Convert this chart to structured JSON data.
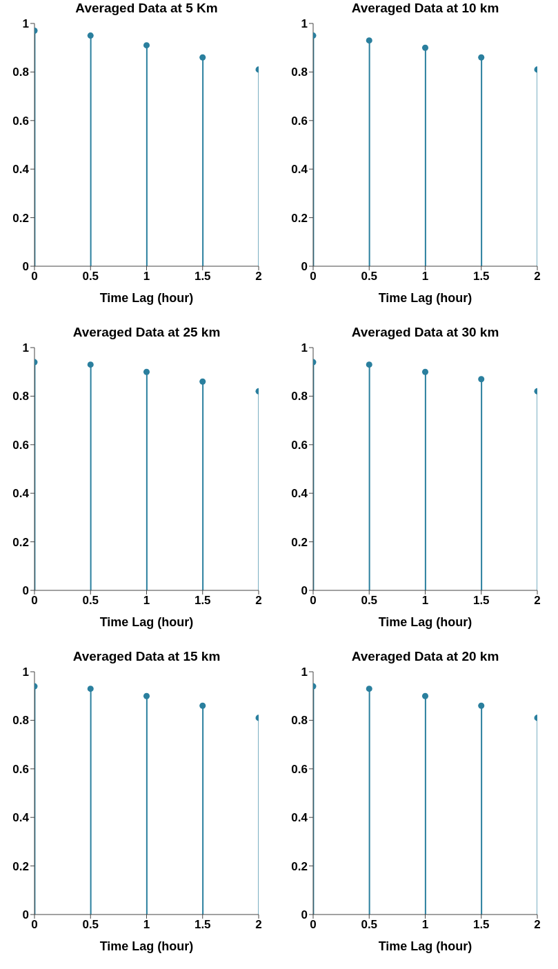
{
  "chart_data": [
    {
      "type": "lollipop",
      "title": "Averaged Data at 5 Km",
      "xlabel": "Time Lag (hour)",
      "x": [
        0,
        0.5,
        1,
        1.5,
        2
      ],
      "values": [
        0.97,
        0.95,
        0.91,
        0.86,
        0.81
      ],
      "color": "#2a7f9e",
      "marker": "circle",
      "xlim": [
        0,
        2
      ],
      "ylim": [
        0,
        1
      ],
      "xticks": [
        0,
        0.5,
        1,
        1.5,
        2
      ],
      "yticks": [
        0,
        0.2,
        0.4,
        0.6,
        0.8,
        1
      ]
    },
    {
      "type": "lollipop",
      "title": "Averaged Data at 10 km",
      "xlabel": "Time Lag (hour)",
      "x": [
        0,
        0.5,
        1,
        1.5,
        2
      ],
      "values": [
        0.95,
        0.93,
        0.9,
        0.86,
        0.81
      ],
      "color": "#2a7f9e",
      "marker": "circle",
      "xlim": [
        0,
        2
      ],
      "ylim": [
        0,
        1
      ],
      "xticks": [
        0,
        0.5,
        1,
        1.5,
        2
      ],
      "yticks": [
        0,
        0.2,
        0.4,
        0.6,
        0.8,
        1
      ]
    },
    {
      "type": "lollipop",
      "title": "Averaged Data at 25 km",
      "xlabel": "Time Lag (hour)",
      "x": [
        0,
        0.5,
        1,
        1.5,
        2
      ],
      "values": [
        0.94,
        0.93,
        0.9,
        0.86,
        0.82
      ],
      "color": "#2a7f9e",
      "marker": "circle",
      "xlim": [
        0,
        2
      ],
      "ylim": [
        0,
        1
      ],
      "xticks": [
        0,
        0.5,
        1,
        1.5,
        2
      ],
      "yticks": [
        0,
        0.2,
        0.4,
        0.6,
        0.8,
        1
      ]
    },
    {
      "type": "lollipop",
      "title": "Averaged Data at 30 km",
      "xlabel": "Time Lag (hour)",
      "x": [
        0,
        0.5,
        1,
        1.5,
        2
      ],
      "values": [
        0.94,
        0.93,
        0.9,
        0.87,
        0.82
      ],
      "color": "#2a7f9e",
      "marker": "circle",
      "xlim": [
        0,
        2
      ],
      "ylim": [
        0,
        1
      ],
      "xticks": [
        0,
        0.5,
        1,
        1.5,
        2
      ],
      "yticks": [
        0,
        0.2,
        0.4,
        0.6,
        0.8,
        1
      ]
    },
    {
      "type": "lollipop",
      "title": "Averaged Data at 15 km",
      "xlabel": "Time Lag (hour)",
      "x": [
        0,
        0.5,
        1,
        1.5,
        2
      ],
      "values": [
        0.94,
        0.93,
        0.9,
        0.86,
        0.81
      ],
      "color": "#2a7f9e",
      "marker": "circle",
      "xlim": [
        0,
        2
      ],
      "ylim": [
        0,
        1
      ],
      "xticks": [
        0,
        0.5,
        1,
        1.5,
        2
      ],
      "yticks": [
        0,
        0.2,
        0.4,
        0.6,
        0.8,
        1
      ]
    },
    {
      "type": "lollipop",
      "title": "Averaged Data at 20 km",
      "xlabel": "Time Lag (hour)",
      "x": [
        0,
        0.5,
        1,
        1.5,
        2
      ],
      "values": [
        0.94,
        0.93,
        0.9,
        0.86,
        0.81
      ],
      "color": "#2a7f9e",
      "marker": "circle",
      "xlim": [
        0,
        2
      ],
      "ylim": [
        0,
        1
      ],
      "xticks": [
        0,
        0.5,
        1,
        1.5,
        2
      ],
      "yticks": [
        0,
        0.2,
        0.4,
        0.6,
        0.8,
        1
      ]
    }
  ]
}
